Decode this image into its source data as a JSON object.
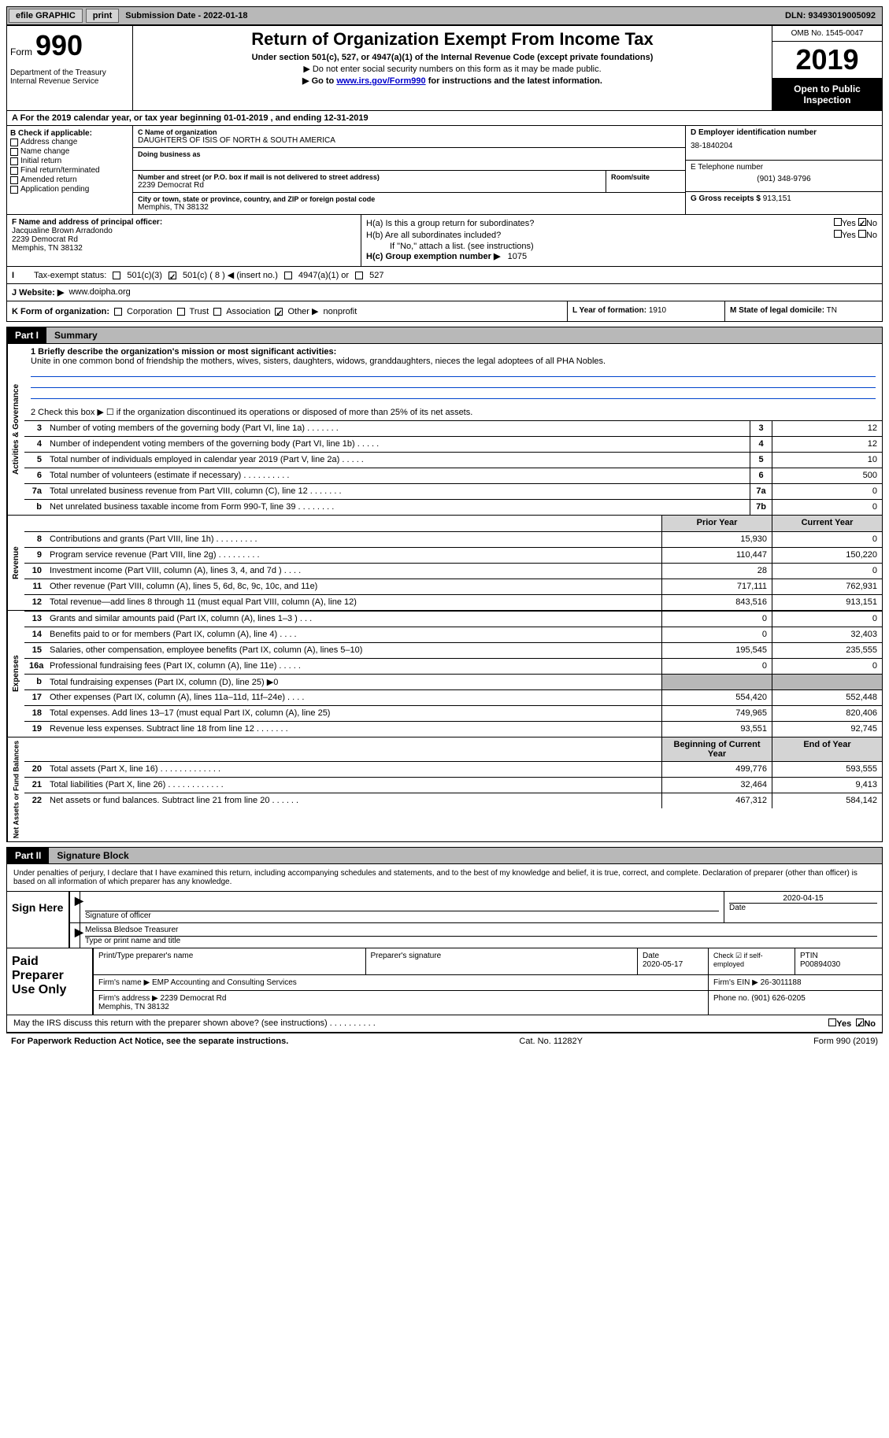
{
  "topbar": {
    "efile_label": "efile GRAPHIC",
    "print_label": "print",
    "submission_label": "Submission Date - 2022-01-18",
    "dln_label": "DLN: 93493019005092"
  },
  "header": {
    "form_label": "Form",
    "form_number": "990",
    "dept": "Department of the Treasury\nInternal Revenue Service",
    "title": "Return of Organization Exempt From Income Tax",
    "subtitle": "Under section 501(c), 527, or 4947(a)(1) of the Internal Revenue Code (except private foundations)",
    "inst1": "▶ Do not enter social security numbers on this form as it may be made public.",
    "inst2_pre": "▶ Go to ",
    "inst2_link": "www.irs.gov/Form990",
    "inst2_post": " for instructions and the latest information.",
    "omb": "OMB No. 1545-0047",
    "year": "2019",
    "open_public": "Open to Public Inspection"
  },
  "lineA": "A For the 2019 calendar year, or tax year beginning 01-01-2019    , and ending 12-31-2019",
  "sectionB": {
    "title": "B Check if applicable:",
    "items": [
      "Address change",
      "Name change",
      "Initial return",
      "Final return/terminated",
      "Amended return",
      "Application pending"
    ]
  },
  "sectionC": {
    "name_label": "C Name of organization",
    "name": "DAUGHTERS OF ISIS OF NORTH & SOUTH AMERICA",
    "dba_label": "Doing business as",
    "street_label": "Number and street (or P.O. box if mail is not delivered to street address)",
    "room_label": "Room/suite",
    "street": "2239 Democrat Rd",
    "city_label": "City or town, state or province, country, and ZIP or foreign postal code",
    "city": "Memphis, TN  38132"
  },
  "sectionD": {
    "ein_label": "D Employer identification number",
    "ein": "38-1840204",
    "phone_label": "E Telephone number",
    "phone": "(901) 348-9796",
    "receipts_label": "G Gross receipts $",
    "receipts": "913,151"
  },
  "sectionF": {
    "label": "F  Name and address of principal officer:",
    "name": "Jacqualine Brown Arradondo",
    "addr1": "2239 Democrat Rd",
    "addr2": "Memphis, TN  38132"
  },
  "sectionH": {
    "ha": "H(a)  Is this a group return for subordinates?",
    "hb": "H(b)  Are all subordinates included?",
    "hb_note": "If \"No,\" attach a list. (see instructions)",
    "hc": "H(c)  Group exemption number ▶",
    "hc_val": "1075",
    "yes": "Yes",
    "no": "No"
  },
  "lineI": {
    "label": "Tax-exempt status:",
    "opt1": "501(c)(3)",
    "opt2": "501(c) ( 8 ) ◀ (insert no.)",
    "opt3": "4947(a)(1) or",
    "opt4": "527"
  },
  "lineJ": {
    "label": "J   Website: ▶",
    "value": "www.doipha.org"
  },
  "lineK": {
    "label": "K Form of organization:",
    "opts": [
      "Corporation",
      "Trust",
      "Association",
      "Other ▶"
    ],
    "other_val": "nonprofit",
    "year_label": "L Year of formation:",
    "year_val": "1910",
    "state_label": "M State of legal domicile:",
    "state_val": "TN"
  },
  "part1": {
    "label": "Part I",
    "title": "Summary",
    "side_gov": "Activities & Governance",
    "side_rev": "Revenue",
    "side_exp": "Expenses",
    "side_net": "Net Assets or Fund Balances",
    "line1_label": "1  Briefly describe the organization's mission or most significant activities:",
    "line1_text": "Unite in one common bond of friendship the mothers, wives, sisters, daughters, widows, granddaughters, nieces the legal adoptees of all PHA Nobles.",
    "line2": "2    Check this box ▶ ☐  if the organization discontinued its operations or disposed of more than 25% of its net assets.",
    "header_prior": "Prior Year",
    "header_current": "Current Year",
    "header_begin": "Beginning of Current Year",
    "header_end": "End of Year",
    "rows_gov": [
      {
        "n": "3",
        "d": "Number of voting members of the governing body (Part VI, line 1a)   .    .    .    .    .    .    .",
        "c": "3",
        "v": "12"
      },
      {
        "n": "4",
        "d": "Number of independent voting members of the governing body (Part VI, line 1b)   .    .    .    .    .",
        "c": "4",
        "v": "12"
      },
      {
        "n": "5",
        "d": "Total number of individuals employed in calendar year 2019 (Part V, line 2a)   .    .    .    .    .",
        "c": "5",
        "v": "10"
      },
      {
        "n": "6",
        "d": "Total number of volunteers (estimate if necessary)   .    .    .    .    .    .    .    .    .    .",
        "c": "6",
        "v": "500"
      },
      {
        "n": "7a",
        "d": "Total unrelated business revenue from Part VIII, column (C), line 12   .    .    .    .    .    .    .",
        "c": "7a",
        "v": "0"
      },
      {
        "n": "b",
        "d": "Net unrelated business taxable income from Form 990-T, line 39  .    .    .    .    .    .    .    .",
        "c": "7b",
        "v": "0"
      }
    ],
    "rows_rev": [
      {
        "n": "8",
        "d": "Contributions and grants (Part VIII, line 1h)   .    .    .    .    .    .    .    .    .",
        "p": "15,930",
        "c": "0"
      },
      {
        "n": "9",
        "d": "Program service revenue (Part VIII, line 2g)   .    .    .    .    .    .    .    .    .",
        "p": "110,447",
        "c": "150,220"
      },
      {
        "n": "10",
        "d": "Investment income (Part VIII, column (A), lines 3, 4, and 7d )   .    .    .    .",
        "p": "28",
        "c": "0"
      },
      {
        "n": "11",
        "d": "Other revenue (Part VIII, column (A), lines 5, 6d, 8c, 9c, 10c, and 11e)",
        "p": "717,111",
        "c": "762,931"
      },
      {
        "n": "12",
        "d": "Total revenue—add lines 8 through 11 (must equal Part VIII, column (A), line 12)",
        "p": "843,516",
        "c": "913,151"
      }
    ],
    "rows_exp": [
      {
        "n": "13",
        "d": "Grants and similar amounts paid (Part IX, column (A), lines 1–3 )   .    .    .",
        "p": "0",
        "c": "0"
      },
      {
        "n": "14",
        "d": "Benefits paid to or for members (Part IX, column (A), line 4)   .    .    .    .",
        "p": "0",
        "c": "32,403"
      },
      {
        "n": "15",
        "d": "Salaries, other compensation, employee benefits (Part IX, column (A), lines 5–10)",
        "p": "195,545",
        "c": "235,555"
      },
      {
        "n": "16a",
        "d": "Professional fundraising fees (Part IX, column (A), line 11e)   .    .    .    .    .",
        "p": "0",
        "c": "0"
      },
      {
        "n": "b",
        "d": "Total fundraising expenses (Part IX, column (D), line 25) ▶0",
        "p": "",
        "c": "",
        "shaded": true
      },
      {
        "n": "17",
        "d": "Other expenses (Part IX, column (A), lines 11a–11d, 11f–24e)   .    .    .    .",
        "p": "554,420",
        "c": "552,448"
      },
      {
        "n": "18",
        "d": "Total expenses. Add lines 13–17 (must equal Part IX, column (A), line 25)",
        "p": "749,965",
        "c": "820,406"
      },
      {
        "n": "19",
        "d": "Revenue less expenses. Subtract line 18 from line 12   .    .    .    .    .    .    .",
        "p": "93,551",
        "c": "92,745"
      }
    ],
    "rows_net": [
      {
        "n": "20",
        "d": "Total assets (Part X, line 16)   .    .    .    .    .    .    .    .    .    .    .    .    .",
        "p": "499,776",
        "c": "593,555"
      },
      {
        "n": "21",
        "d": "Total liabilities (Part X, line 26)   .    .    .    .    .    .    .    .    .    .    .    .",
        "p": "32,464",
        "c": "9,413"
      },
      {
        "n": "22",
        "d": "Net assets or fund balances. Subtract line 21 from line 20   .    .    .    .    .    .",
        "p": "467,312",
        "c": "584,142"
      }
    ]
  },
  "part2": {
    "label": "Part II",
    "title": "Signature Block",
    "intro": "Under penalties of perjury, I declare that I have examined this return, including accompanying schedules and statements, and to the best of my knowledge and belief, it is true, correct, and complete. Declaration of preparer (other than officer) is based on all information of which preparer has any knowledge.",
    "sign_here": "Sign Here",
    "sig_officer": "Signature of officer",
    "date": "Date",
    "date_val": "2020-04-15",
    "name_title": "Melissa Bledsoe Treasurer",
    "type_name": "Type or print name and title",
    "paid_prep": "Paid Preparer Use Only",
    "print_name": "Print/Type preparer's name",
    "prep_sig": "Preparer's signature",
    "prep_date_label": "Date",
    "prep_date": "2020-05-17",
    "check_self": "Check ☑ if self-employed",
    "ptin_label": "PTIN",
    "ptin": "P00894030",
    "firm_name_label": "Firm's name    ▶",
    "firm_name": "EMP Accounting and Consulting Services",
    "firm_ein_label": "Firm's EIN ▶",
    "firm_ein": "26-3011188",
    "firm_addr_label": "Firm's address ▶",
    "firm_addr": "2239 Democrat Rd\nMemphis, TN  38132",
    "phone_label": "Phone no.",
    "phone": "(901) 626-0205",
    "may_text": "May the IRS discuss this return with the preparer shown above? (see instructions)   .    .    .    .    .    .    .    .    .    .",
    "yes": "Yes",
    "no": "No"
  },
  "footer": {
    "left": "For Paperwork Reduction Act Notice, see the separate instructions.",
    "mid": "Cat. No. 11282Y",
    "right": "Form 990 (2019)"
  },
  "colors": {
    "bg_gray": "#b8b8b8",
    "bg_light": "#d4d4d4",
    "link_blue": "#0000cc",
    "rule_blue": "#0044cc"
  }
}
